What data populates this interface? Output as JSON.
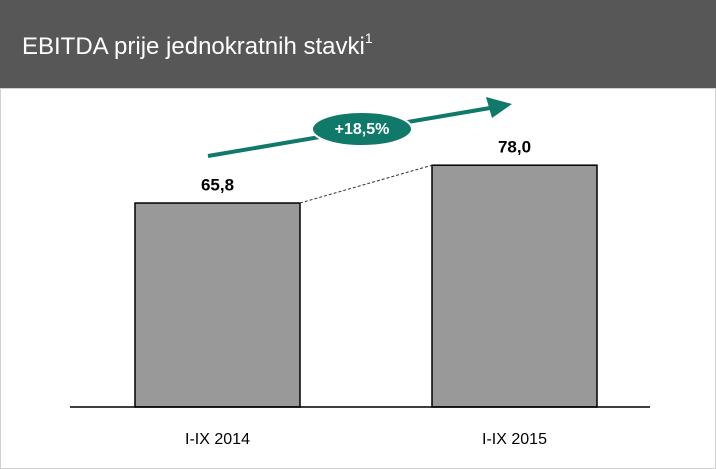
{
  "chart_data": {
    "type": "bar",
    "title": "EBITDA prije jednokratnih stavki",
    "title_note": "1",
    "categories": [
      "I-IX 2014",
      "I-IX 2015"
    ],
    "values": [
      65.8,
      78.0
    ],
    "value_labels": [
      "65,8",
      "78,0"
    ],
    "color": "#999999",
    "annotation": "+18,5%",
    "annotation_color": "#11796a"
  }
}
